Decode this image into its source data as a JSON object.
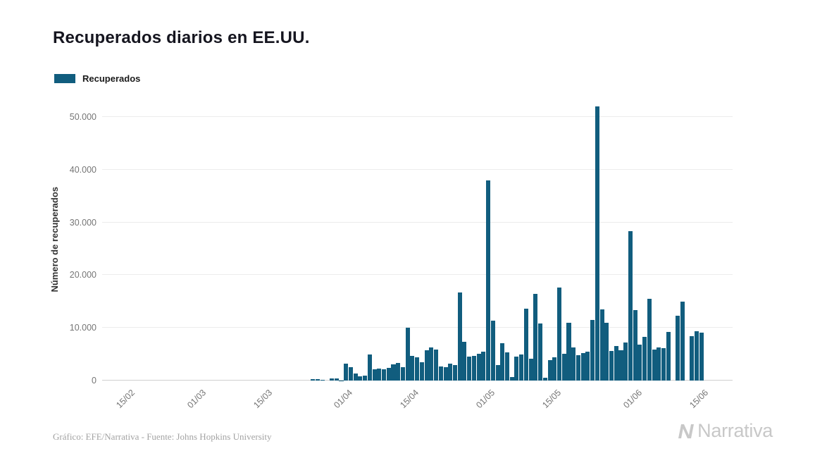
{
  "page": {
    "title": "Recuperados diarios en EE.UU."
  },
  "legend": {
    "label": "Recuperados",
    "color": "#115d7e"
  },
  "footer": {
    "credit": "Gráfico: EFE/Narrativa - Fuente: Johns Hopkins University"
  },
  "brand": {
    "name": "Narrativa",
    "color": "#c8c8c8"
  },
  "chart_data": {
    "type": "bar",
    "title": "Recuperados diarios en EE.UU.",
    "xlabel": "",
    "ylabel": "Número de recuperados",
    "ylim": [
      0,
      53500
    ],
    "grid": true,
    "legend_position": "top-left",
    "bar_color": "#115d7e",
    "y_ticks": [
      "0",
      "10.000",
      "20.000",
      "30.000",
      "40.000",
      "50.000"
    ],
    "y_tick_values": [
      0,
      10000,
      20000,
      30000,
      40000,
      50000
    ],
    "x_ticks": [
      "15/02",
      "01/03",
      "15/03",
      "01/04",
      "15/04",
      "01/05",
      "15/05",
      "01/06",
      "15/06"
    ],
    "dates": [
      "10/02",
      "11/02",
      "12/02",
      "13/02",
      "14/02",
      "15/02",
      "16/02",
      "17/02",
      "18/02",
      "19/02",
      "20/02",
      "21/02",
      "22/02",
      "23/02",
      "24/02",
      "25/02",
      "26/02",
      "27/02",
      "28/02",
      "29/02",
      "01/03",
      "02/03",
      "03/03",
      "04/03",
      "05/03",
      "06/03",
      "07/03",
      "08/03",
      "09/03",
      "10/03",
      "11/03",
      "12/03",
      "13/03",
      "14/03",
      "15/03",
      "16/03",
      "17/03",
      "18/03",
      "19/03",
      "20/03",
      "21/03",
      "22/03",
      "23/03",
      "24/03",
      "25/03",
      "26/03",
      "27/03",
      "28/03",
      "29/03",
      "30/03",
      "31/03",
      "01/04",
      "02/04",
      "03/04",
      "04/04",
      "05/04",
      "06/04",
      "07/04",
      "08/04",
      "09/04",
      "10/04",
      "11/04",
      "12/04",
      "13/04",
      "14/04",
      "15/04",
      "16/04",
      "17/04",
      "18/04",
      "19/04",
      "20/04",
      "21/04",
      "22/04",
      "23/04",
      "24/04",
      "25/04",
      "26/04",
      "27/04",
      "28/04",
      "29/04",
      "30/04",
      "01/05",
      "02/05",
      "03/05",
      "04/05",
      "05/05",
      "06/05",
      "07/05",
      "08/05",
      "09/05",
      "10/05",
      "11/05",
      "12/05",
      "13/05",
      "14/05",
      "15/05",
      "16/05",
      "17/05",
      "18/05",
      "19/05",
      "20/05",
      "21/05",
      "22/05",
      "23/05",
      "24/05",
      "25/05",
      "26/05",
      "27/05",
      "28/05",
      "29/05",
      "30/05",
      "31/05",
      "01/06",
      "02/06",
      "03/06",
      "04/06",
      "05/06",
      "06/06",
      "07/06",
      "08/06",
      "09/06",
      "10/06",
      "11/06",
      "12/06",
      "13/06",
      "14/06",
      "15/06",
      "16/06",
      "17/06",
      "18/06",
      "19/06",
      "20/06",
      "21/06"
    ],
    "values": [
      0,
      0,
      0,
      0,
      0,
      0,
      0,
      0,
      0,
      0,
      0,
      0,
      0,
      0,
      0,
      0,
      0,
      0,
      0,
      0,
      0,
      0,
      0,
      0,
      0,
      0,
      0,
      0,
      0,
      0,
      0,
      0,
      0,
      0,
      0,
      0,
      0,
      0,
      0,
      0,
      0,
      0,
      0,
      0,
      300,
      250,
      80,
      0,
      350,
      400,
      60,
      3200,
      2600,
      1300,
      800,
      900,
      5000,
      2100,
      2300,
      2200,
      2400,
      3100,
      3300,
      2500,
      10000,
      4700,
      4400,
      3500,
      5700,
      6300,
      5900,
      2700,
      2500,
      3200,
      2900,
      16700,
      7300,
      4500,
      4700,
      5100,
      5500,
      38000,
      11400,
      3000,
      7100,
      5300,
      700,
      4500,
      5000,
      13600,
      4200,
      16500,
      10800,
      500,
      3900,
      4400,
      17700,
      5100,
      11000,
      6300,
      4800,
      5200,
      5500,
      11500,
      52000,
      13500,
      11000,
      5600,
      6500,
      5800,
      7200,
      28400,
      13400,
      6800,
      8300,
      15500,
      5900,
      6300,
      6200,
      9200,
      0,
      12300,
      15000,
      0,
      8400,
      9300,
      9100,
      0,
      0,
      0,
      0,
      0,
      0
    ]
  }
}
